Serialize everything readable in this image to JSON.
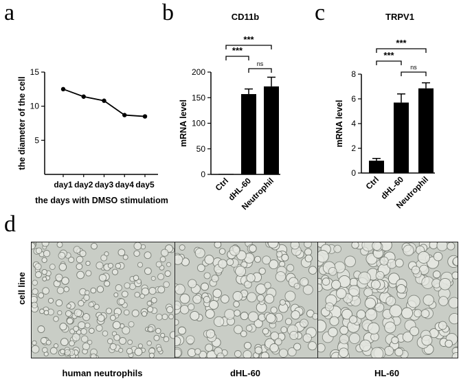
{
  "panels": {
    "a": "a",
    "b": "b",
    "c": "c",
    "d": "d"
  },
  "chart_data": [
    {
      "type": "line",
      "title": "",
      "xlabel": "the days with  DMSO stimulatiom",
      "ylabel": "the diameter of the cell",
      "categories": [
        "day1",
        "day2",
        "day3",
        "day4",
        "day5"
      ],
      "values": [
        12.5,
        11.4,
        10.8,
        8.7,
        8.5
      ],
      "ylim": [
        0,
        15
      ],
      "yticks": [
        5,
        10,
        15
      ],
      "color": "#000000"
    },
    {
      "type": "bar",
      "title": "CD11b",
      "xlabel": "",
      "ylabel": "mRNA level",
      "categories": [
        "Ctrl",
        "dHL-60",
        "Neutrophil"
      ],
      "values": [
        1,
        157,
        172
      ],
      "errors": [
        0,
        10,
        18
      ],
      "ylim": [
        0,
        200
      ],
      "yticks": [
        0,
        50,
        100,
        150,
        200
      ],
      "significance": [
        {
          "from": 0,
          "to": 1,
          "label": "***"
        },
        {
          "from": 0,
          "to": 2,
          "label": "***"
        },
        {
          "from": 1,
          "to": 2,
          "label": "ns"
        }
      ],
      "color": "#000000"
    },
    {
      "type": "bar",
      "title": "TRPV1",
      "xlabel": "",
      "ylabel": "mRNA level",
      "categories": [
        "Ctrl",
        "dHL-60",
        "Neutrophil"
      ],
      "values": [
        1.0,
        5.7,
        6.85
      ],
      "errors": [
        0.18,
        0.7,
        0.45
      ],
      "ylim": [
        0,
        8
      ],
      "yticks": [
        0,
        2,
        4,
        6,
        8
      ],
      "significance": [
        {
          "from": 0,
          "to": 1,
          "label": "***"
        },
        {
          "from": 0,
          "to": 2,
          "label": "***"
        },
        {
          "from": 1,
          "to": 2,
          "label": "ns"
        }
      ],
      "color": "#000000"
    }
  ],
  "micrographs": {
    "ylabel": "cell line",
    "labels": [
      "human neutrophils",
      "dHL-60",
      "HL-60"
    ],
    "background": "#c9cdc6",
    "cell_color": "#e6e8e2",
    "cell_edge": "#6f746c"
  }
}
